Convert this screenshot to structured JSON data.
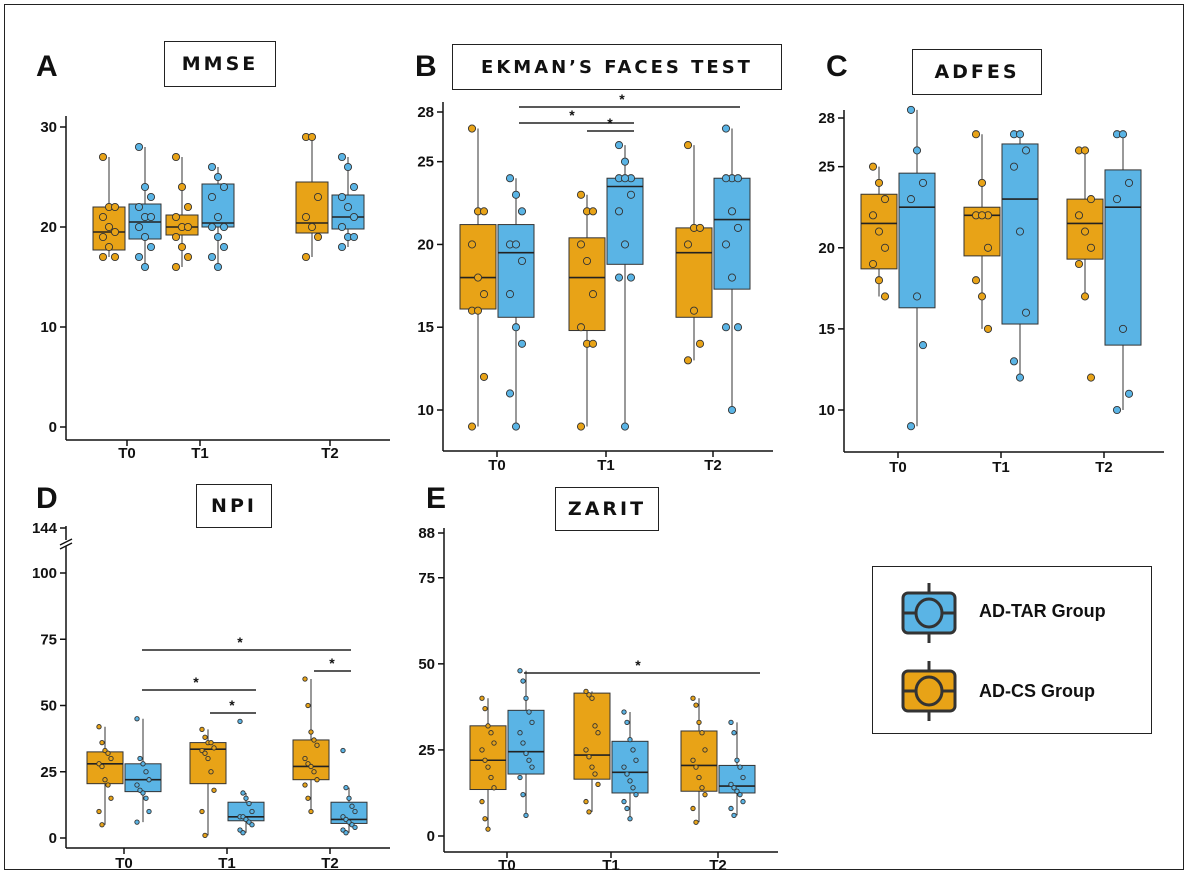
{
  "colors": {
    "ad_cs": "#E8A317",
    "ad_tar": "#5AB4E5",
    "stroke": "#333333",
    "axis": "#111111"
  },
  "legend": {
    "items": [
      {
        "label": "AD-TAR Group",
        "color": "#5AB4E5"
      },
      {
        "label": "AD-CS Group",
        "color": "#E8A317"
      }
    ]
  },
  "chart_data": [
    {
      "panel": "A",
      "title": "MMSE",
      "type": "box",
      "categories": [
        "T0",
        "T1",
        "T2"
      ],
      "yticks": [
        0,
        10,
        20,
        30
      ],
      "ylim": [
        -1,
        31
      ],
      "series": [
        {
          "name": "AD-CS Group",
          "color": "#E8A317",
          "boxes": [
            {
              "min": 17,
              "q1": 17.7,
              "median": 19.5,
              "q3": 22,
              "max": 27,
              "points": [
                27,
                22,
                22,
                21,
                20,
                19.5,
                19,
                18,
                17,
                17
              ]
            },
            {
              "min": 16,
              "q1": 19.2,
              "median": 20,
              "q3": 21.2,
              "max": 27,
              "points": [
                27,
                24,
                22,
                21,
                20,
                20,
                19,
                18,
                17,
                16
              ]
            },
            {
              "min": 17,
              "q1": 19.4,
              "median": 20.4,
              "q3": 24.5,
              "max": 29,
              "points": [
                29,
                29,
                23,
                21,
                20,
                19,
                17
              ]
            }
          ]
        },
        {
          "name": "AD-TAR Group",
          "color": "#5AB4E5",
          "boxes": [
            {
              "min": 16,
              "q1": 18.8,
              "median": 20.5,
              "q3": 22.3,
              "max": 28,
              "points": [
                28,
                24,
                23,
                22,
                21,
                21,
                20,
                19,
                18,
                17,
                16
              ]
            },
            {
              "min": 16,
              "q1": 20,
              "median": 20.4,
              "q3": 24.3,
              "max": 26,
              "points": [
                26,
                25,
                24,
                23,
                21,
                20,
                20,
                19,
                18,
                17,
                16
              ]
            },
            {
              "min": 18,
              "q1": 19.8,
              "median": 21,
              "q3": 23.2,
              "max": 27,
              "points": [
                27,
                26,
                24,
                23,
                22,
                21,
                20,
                19,
                19,
                18
              ]
            }
          ]
        }
      ]
    },
    {
      "panel": "B",
      "title": "EKMAN’S FACES TEST",
      "type": "box",
      "categories": [
        "T0",
        "T1",
        "T2"
      ],
      "yticks": [
        10,
        15,
        20,
        25,
        28
      ],
      "ylim": [
        8.5,
        28.2
      ],
      "significance": [
        {
          "from": 0,
          "to": 2,
          "label": "*"
        },
        {
          "from": 0,
          "to": 1,
          "label": "*"
        },
        {
          "from": 1,
          "to": 1,
          "label": "*"
        }
      ],
      "series": [
        {
          "name": "AD-CS Group",
          "color": "#E8A317",
          "boxes": [
            {
              "min": 9,
              "q1": 16.1,
              "median": 18,
              "q3": 21.2,
              "max": 27,
              "points": [
                27,
                22,
                22,
                20,
                18,
                17,
                16,
                16,
                12,
                9
              ]
            },
            {
              "min": 9,
              "q1": 14.8,
              "median": 18,
              "q3": 20.4,
              "max": 23,
              "points": [
                23,
                22,
                22,
                20,
                19,
                17,
                15,
                14,
                14,
                9
              ]
            },
            {
              "min": 13,
              "q1": 15.6,
              "median": 19.5,
              "q3": 21,
              "max": 26,
              "points": [
                26,
                21,
                21,
                20,
                16,
                14,
                13
              ]
            }
          ]
        },
        {
          "name": "AD-TAR Group",
          "color": "#5AB4E5",
          "boxes": [
            {
              "min": 9,
              "q1": 15.6,
              "median": 19.5,
              "q3": 21.2,
              "max": 24,
              "points": [
                24,
                23,
                22,
                20,
                20,
                19,
                17,
                15,
                14,
                11,
                9
              ]
            },
            {
              "min": 9,
              "q1": 18.8,
              "median": 23.5,
              "q3": 24,
              "max": 26,
              "points": [
                26,
                25,
                24,
                24,
                24,
                23,
                22,
                20,
                18,
                18,
                9
              ]
            },
            {
              "min": 10,
              "q1": 17.3,
              "median": 21.5,
              "q3": 24,
              "max": 27,
              "points": [
                27,
                24,
                24,
                24,
                22,
                21,
                20,
                18,
                15,
                15,
                10
              ]
            }
          ]
        }
      ]
    },
    {
      "panel": "C",
      "title": "ADFES",
      "type": "box",
      "categories": [
        "T0",
        "T1",
        "T2"
      ],
      "yticks": [
        10,
        15,
        20,
        25,
        28
      ],
      "ylim": [
        8.5,
        28.2
      ],
      "series": [
        {
          "name": "AD-CS Group",
          "color": "#E8A317",
          "boxes": [
            {
              "min": 17,
              "q1": 18.7,
              "median": 21.5,
              "q3": 23.3,
              "max": 25,
              "points": [
                25,
                24,
                23,
                22,
                21,
                20,
                19,
                18,
                17
              ]
            },
            {
              "min": 15,
              "q1": 19.5,
              "median": 22,
              "q3": 22.5,
              "max": 27,
              "points": [
                27,
                24,
                22,
                22,
                22,
                20,
                18,
                17,
                15
              ]
            },
            {
              "min": 17,
              "q1": 19.3,
              "median": 21.5,
              "q3": 23,
              "max": 26,
              "points": [
                26,
                26,
                23,
                22,
                21,
                20,
                19,
                17,
                12
              ]
            }
          ]
        },
        {
          "name": "AD-TAR Group",
          "color": "#5AB4E5",
          "boxes": [
            {
              "min": 9,
              "q1": 16.3,
              "median": 22.5,
              "q3": 24.6,
              "max": 28.5,
              "points": [
                28.5,
                26,
                24,
                23,
                17,
                14,
                9
              ]
            },
            {
              "min": 12,
              "q1": 15.3,
              "median": 23,
              "q3": 26.4,
              "max": 27,
              "points": [
                27,
                27,
                26,
                25,
                21,
                16,
                13,
                12
              ]
            },
            {
              "min": 10,
              "q1": 14,
              "median": 22.5,
              "q3": 24.8,
              "max": 27,
              "points": [
                27,
                27,
                24,
                23,
                15,
                11,
                10
              ]
            }
          ]
        }
      ]
    },
    {
      "panel": "D",
      "title": "NPI",
      "type": "box",
      "categories": [
        "T0",
        "T1",
        "T2"
      ],
      "yticks": [
        0,
        25,
        50,
        75,
        100,
        144
      ],
      "ylim": [
        -3,
        100
      ],
      "axis_break": true,
      "significance": [
        {
          "from": 0,
          "to": 2,
          "label": "*"
        },
        {
          "from": 0,
          "to": 1,
          "label": "*"
        },
        {
          "from": 1,
          "to": 1,
          "label": "*"
        },
        {
          "from": 2,
          "to": 2,
          "label": "*"
        }
      ],
      "series": [
        {
          "name": "AD-CS Group",
          "color": "#E8A317",
          "boxes": [
            {
              "min": 5,
              "q1": 20.5,
              "median": 28,
              "q3": 32.5,
              "max": 42,
              "points": [
                42,
                36,
                33,
                32,
                30,
                28,
                27,
                22,
                20,
                15,
                10,
                5
              ]
            },
            {
              "min": 1,
              "q1": 20.5,
              "median": 33.5,
              "q3": 36,
              "max": 41,
              "points": [
                41,
                38,
                36,
                36,
                34,
                33,
                32,
                30,
                25,
                18,
                10,
                1
              ]
            },
            {
              "min": 10,
              "q1": 22,
              "median": 27,
              "q3": 37,
              "max": 60,
              "points": [
                60,
                50,
                40,
                37,
                35,
                30,
                28,
                27,
                25,
                22,
                20,
                15,
                10
              ]
            }
          ]
        },
        {
          "name": "AD-TAR Group",
          "color": "#5AB4E5",
          "boxes": [
            {
              "min": 6,
              "q1": 17.5,
              "median": 22,
              "q3": 28,
              "max": 45,
              "points": [
                45,
                30,
                28,
                25,
                22,
                20,
                18,
                17,
                15,
                10,
                6
              ]
            },
            {
              "min": 2,
              "q1": 6.5,
              "median": 8,
              "q3": 13.5,
              "max": 17,
              "points": [
                44,
                17,
                15,
                13,
                10,
                8,
                8,
                7,
                6,
                5,
                3,
                2
              ]
            },
            {
              "min": 2,
              "q1": 5.5,
              "median": 7,
              "q3": 13.5,
              "max": 19,
              "points": [
                33,
                19,
                15,
                12,
                10,
                8,
                7,
                6,
                5,
                4,
                3,
                2
              ]
            }
          ]
        }
      ]
    },
    {
      "panel": "E",
      "title": "ZARIT",
      "type": "box",
      "categories": [
        "T0",
        "T1",
        "T2"
      ],
      "yticks": [
        0,
        25,
        50,
        75,
        88
      ],
      "ylim": [
        -3,
        88
      ],
      "significance": [
        {
          "from": 0,
          "to": 2,
          "label": "*"
        }
      ],
      "series": [
        {
          "name": "AD-CS Group",
          "color": "#E8A317",
          "boxes": [
            {
              "min": 2,
              "q1": 13.5,
              "median": 22,
              "q3": 32,
              "max": 40,
              "points": [
                40,
                37,
                32,
                30,
                27,
                25,
                22,
                20,
                17,
                14,
                10,
                5,
                2
              ]
            },
            {
              "min": 7,
              "q1": 16.5,
              "median": 23.5,
              "q3": 41.5,
              "max": 42,
              "points": [
                42,
                41,
                40,
                32,
                30,
                25,
                23,
                20,
                18,
                15,
                10,
                7
              ]
            },
            {
              "min": 4,
              "q1": 13,
              "median": 20.5,
              "q3": 30.5,
              "max": 40,
              "points": [
                40,
                38,
                33,
                30,
                25,
                22,
                20,
                17,
                14,
                12,
                8,
                4
              ]
            }
          ]
        },
        {
          "name": "AD-TAR Group",
          "color": "#5AB4E5",
          "boxes": [
            {
              "min": 6,
              "q1": 18,
              "median": 24.5,
              "q3": 36.5,
              "max": 48,
              "points": [
                48,
                45,
                40,
                36,
                33,
                30,
                27,
                24,
                22,
                20,
                17,
                12,
                6
              ]
            },
            {
              "min": 5,
              "q1": 12.5,
              "median": 18.5,
              "q3": 27.5,
              "max": 36,
              "points": [
                36,
                33,
                28,
                25,
                22,
                20,
                18,
                16,
                14,
                12,
                10,
                8,
                5
              ]
            },
            {
              "min": 6,
              "q1": 12.5,
              "median": 14.5,
              "q3": 20.5,
              "max": 33,
              "points": [
                33,
                30,
                22,
                20,
                17,
                15,
                14,
                13,
                12,
                10,
                8,
                6
              ]
            }
          ]
        }
      ]
    }
  ]
}
